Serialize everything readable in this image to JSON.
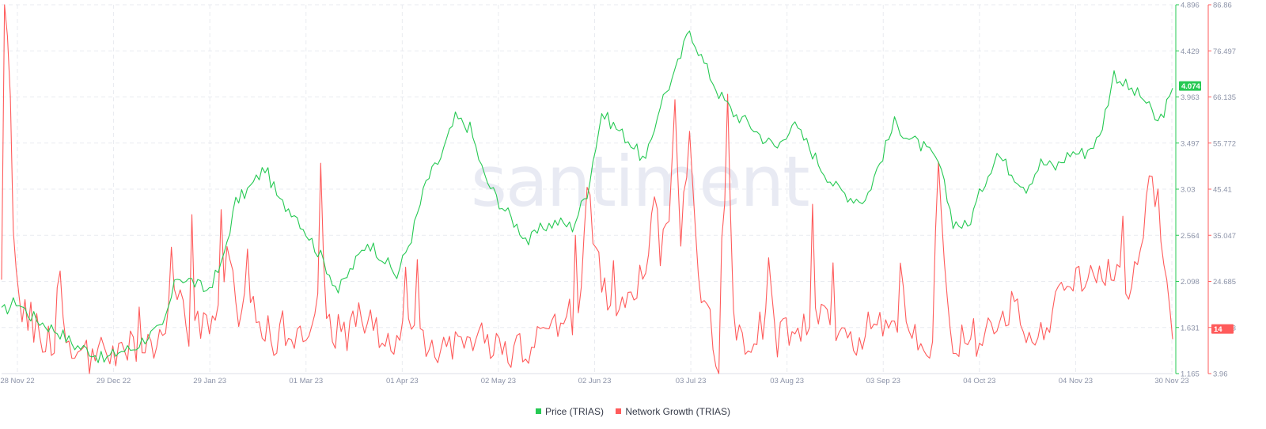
{
  "watermark": "santiment",
  "colors": {
    "price": "#26c953",
    "network": "#ff5b5b",
    "grid": "#e9ebf0",
    "axis_text": "#8c93a8"
  },
  "chart_data": {
    "type": "line",
    "x_ticks": [
      "28 Nov 22",
      "29 Dec 22",
      "29 Jan 23",
      "01 Mar 23",
      "01 Apr 23",
      "02 May 23",
      "02 Jun 23",
      "03 Jul 23",
      "03 Aug 23",
      "03 Sep 23",
      "04 Oct 23",
      "04 Nov 23",
      "30 Nov 23"
    ],
    "axes": {
      "price": {
        "ticks": [
          "4.896",
          "4.429",
          "3.963",
          "3.497",
          "3.03",
          "2.564",
          "2.098",
          "1.631",
          "1.165"
        ],
        "ylim": [
          1.165,
          4.896
        ],
        "current": "4.074"
      },
      "network": {
        "ticks": [
          "86.86",
          "76.497",
          "66.135",
          "55.772",
          "45.41",
          "35.047",
          "24.685",
          "14.323",
          "3.96"
        ],
        "ylim": [
          3.96,
          86.86
        ],
        "current": "14"
      }
    },
    "grid": true,
    "legend_position": "bottom-center",
    "series": [
      {
        "name": "Price (TRIAS)",
        "axis": "price",
        "color": "#26c953",
        "anchors": [
          [
            0,
            1.78
          ],
          [
            5,
            1.9
          ],
          [
            10,
            1.75
          ],
          [
            15,
            1.66
          ],
          [
            20,
            1.58
          ],
          [
            25,
            1.45
          ],
          [
            30,
            1.4
          ],
          [
            35,
            1.3
          ],
          [
            40,
            1.39
          ],
          [
            45,
            1.42
          ],
          [
            50,
            1.55
          ],
          [
            55,
            1.62
          ],
          [
            60,
            2.15
          ],
          [
            65,
            2.1
          ],
          [
            70,
            2.0
          ],
          [
            75,
            2.25
          ],
          [
            80,
            2.9
          ],
          [
            85,
            3.05
          ],
          [
            90,
            3.25
          ],
          [
            95,
            2.9
          ],
          [
            100,
            2.8
          ],
          [
            105,
            2.55
          ],
          [
            110,
            2.3
          ],
          [
            115,
            2.0
          ],
          [
            120,
            2.25
          ],
          [
            125,
            2.5
          ],
          [
            130,
            2.35
          ],
          [
            135,
            2.15
          ],
          [
            140,
            2.55
          ],
          [
            145,
            3.1
          ],
          [
            150,
            3.35
          ],
          [
            155,
            3.75
          ],
          [
            160,
            3.65
          ],
          [
            165,
            3.15
          ],
          [
            170,
            2.9
          ],
          [
            175,
            2.7
          ],
          [
            180,
            2.5
          ],
          [
            185,
            2.65
          ],
          [
            190,
            2.7
          ],
          [
            195,
            2.65
          ],
          [
            200,
            3.0
          ],
          [
            205,
            3.8
          ],
          [
            210,
            3.65
          ],
          [
            215,
            3.5
          ],
          [
            220,
            3.3
          ],
          [
            225,
            3.9
          ],
          [
            230,
            4.2
          ],
          [
            235,
            4.65
          ],
          [
            240,
            4.3
          ],
          [
            245,
            4.0
          ],
          [
            250,
            3.8
          ],
          [
            255,
            3.7
          ],
          [
            260,
            3.55
          ],
          [
            265,
            3.45
          ],
          [
            270,
            3.7
          ],
          [
            275,
            3.5
          ],
          [
            280,
            3.25
          ],
          [
            285,
            3.05
          ],
          [
            290,
            2.95
          ],
          [
            295,
            2.92
          ],
          [
            300,
            3.3
          ],
          [
            305,
            3.7
          ],
          [
            310,
            3.55
          ],
          [
            315,
            3.45
          ],
          [
            320,
            3.3
          ],
          [
            325,
            2.7
          ],
          [
            330,
            2.65
          ],
          [
            335,
            3.05
          ],
          [
            340,
            3.4
          ],
          [
            345,
            3.2
          ],
          [
            350,
            3.05
          ],
          [
            355,
            3.3
          ],
          [
            360,
            3.25
          ],
          [
            365,
            3.4
          ],
          [
            370,
            3.4
          ],
          [
            375,
            3.55
          ],
          [
            380,
            4.2
          ],
          [
            385,
            4.05
          ],
          [
            390,
            3.95
          ],
          [
            395,
            3.7
          ],
          [
            400,
            4.0
          ]
        ]
      },
      {
        "name": "Network Growth (TRIAS)",
        "axis": "network",
        "color": "#ff5b5b",
        "anchors": [
          [
            0,
            22
          ],
          [
            1,
            86
          ],
          [
            3,
            66
          ],
          [
            4,
            40
          ],
          [
            6,
            18
          ],
          [
            10,
            16
          ],
          [
            15,
            12
          ],
          [
            18,
            9
          ],
          [
            20,
            31
          ],
          [
            22,
            10
          ],
          [
            25,
            8
          ],
          [
            28,
            8
          ],
          [
            30,
            6
          ],
          [
            33,
            10
          ],
          [
            36,
            6
          ],
          [
            40,
            8
          ],
          [
            45,
            10
          ],
          [
            50,
            10
          ],
          [
            55,
            12
          ],
          [
            58,
            28
          ],
          [
            60,
            25
          ],
          [
            63,
            12
          ],
          [
            66,
            16
          ],
          [
            70,
            14
          ],
          [
            75,
            18
          ],
          [
            77,
            32
          ],
          [
            80,
            19
          ],
          [
            82,
            18
          ],
          [
            85,
            20
          ],
          [
            88,
            15
          ],
          [
            92,
            12
          ],
          [
            97,
            14
          ],
          [
            100,
            10
          ],
          [
            105,
            12
          ],
          [
            108,
            20
          ],
          [
            109,
            48
          ],
          [
            111,
            14
          ],
          [
            115,
            14
          ],
          [
            118,
            12
          ],
          [
            120,
            18
          ],
          [
            125,
            16
          ],
          [
            130,
            12
          ],
          [
            135,
            10
          ],
          [
            140,
            14
          ],
          [
            145,
            12
          ],
          [
            150,
            10
          ],
          [
            155,
            12
          ],
          [
            160,
            14
          ],
          [
            163,
            10
          ],
          [
            165,
            12
          ],
          [
            170,
            10
          ],
          [
            175,
            8
          ],
          [
            180,
            10
          ],
          [
            185,
            12
          ],
          [
            190,
            16
          ],
          [
            195,
            14
          ],
          [
            198,
            22
          ],
          [
            200,
            50
          ],
          [
            203,
            30
          ],
          [
            205,
            24
          ],
          [
            210,
            18
          ],
          [
            215,
            22
          ],
          [
            220,
            26
          ],
          [
            223,
            48
          ],
          [
            225,
            30
          ],
          [
            228,
            38
          ],
          [
            230,
            64
          ],
          [
            232,
            34
          ],
          [
            235,
            58
          ],
          [
            238,
            26
          ],
          [
            240,
            22
          ],
          [
            245,
            6
          ],
          [
            248,
            66
          ],
          [
            250,
            14
          ],
          [
            255,
            12
          ],
          [
            260,
            14
          ],
          [
            262,
            30
          ],
          [
            265,
            12
          ],
          [
            270,
            14
          ],
          [
            275,
            14
          ],
          [
            280,
            16
          ],
          [
            285,
            12
          ],
          [
            290,
            10
          ],
          [
            295,
            14
          ],
          [
            300,
            14
          ],
          [
            305,
            12
          ],
          [
            308,
            28
          ],
          [
            310,
            12
          ],
          [
            318,
            10
          ],
          [
            320,
            56
          ],
          [
            322,
            30
          ],
          [
            325,
            10
          ],
          [
            330,
            12
          ],
          [
            335,
            12
          ],
          [
            340,
            14
          ],
          [
            345,
            18
          ],
          [
            350,
            14
          ],
          [
            355,
            14
          ],
          [
            360,
            18
          ],
          [
            365,
            26
          ],
          [
            370,
            22
          ],
          [
            373,
            30
          ],
          [
            375,
            24
          ],
          [
            380,
            28
          ],
          [
            385,
            24
          ],
          [
            390,
            36
          ],
          [
            392,
            46
          ],
          [
            395,
            42
          ],
          [
            397,
            24
          ],
          [
            400,
            14
          ]
        ]
      }
    ]
  },
  "legend": [
    {
      "label": "Price (TRIAS)",
      "color": "#26c953"
    },
    {
      "label": "Network Growth (TRIAS)",
      "color": "#ff5b5b"
    }
  ]
}
